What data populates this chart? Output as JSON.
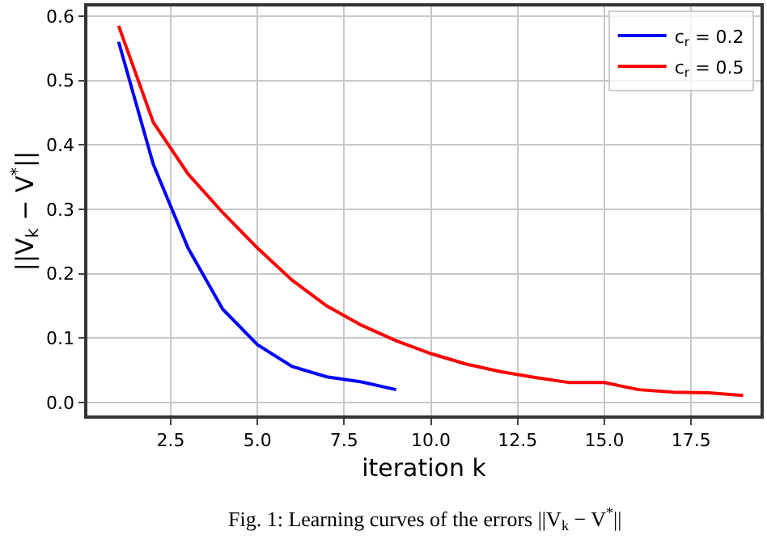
{
  "chart_data": {
    "type": "line",
    "xlabel": "iteration k",
    "ylabel": "||V$_{k}$ − V$^{*}$||",
    "annotations": [
      "Fig. 1: Learning curves of the errors ||V$_{k}$ − V$^{*}$||"
    ],
    "x": [
      1,
      2,
      3,
      4,
      5,
      6,
      7,
      8,
      9,
      10,
      11,
      12,
      13,
      14,
      15,
      16,
      17,
      18,
      19
    ],
    "series": [
      {
        "name": "c$_{r}$ = 0.2",
        "color": "#0000ff",
        "x": [
          1,
          2,
          3,
          4,
          5,
          6,
          7,
          8,
          9
        ],
        "values": [
          0.56,
          0.37,
          0.24,
          0.145,
          0.09,
          0.056,
          0.04,
          0.032,
          0.02
        ]
      },
      {
        "name": "c$_{r}$ = 0.5",
        "color": "#ff0000",
        "values": [
          0.585,
          0.435,
          0.355,
          0.295,
          0.24,
          0.19,
          0.15,
          0.12,
          0.096,
          0.076,
          0.06,
          0.048,
          0.039,
          0.031,
          0.031,
          0.02,
          0.016,
          0.015,
          0.011
        ]
      }
    ],
    "xlim": [
      0.1,
      19.5
    ],
    "ylim": [
      -0.02,
      0.615
    ],
    "xticks": [
      {
        "value": 2.5,
        "label": "2.5"
      },
      {
        "value": 5,
        "label": "5.0"
      },
      {
        "value": 7.5,
        "label": "7.5"
      },
      {
        "value": 10,
        "label": "10.0"
      },
      {
        "value": 12.5,
        "label": "12.5"
      },
      {
        "value": 15,
        "label": "15.0"
      },
      {
        "value": 17.5,
        "label": "17.5"
      }
    ],
    "yticks": [
      {
        "value": 0,
        "label": "0.0"
      },
      0.1,
      0.2,
      0.3,
      0.4,
      0.5,
      0.6
    ],
    "grid": true,
    "legend": "top right",
    "line_style": "solid",
    "marker": "none"
  }
}
